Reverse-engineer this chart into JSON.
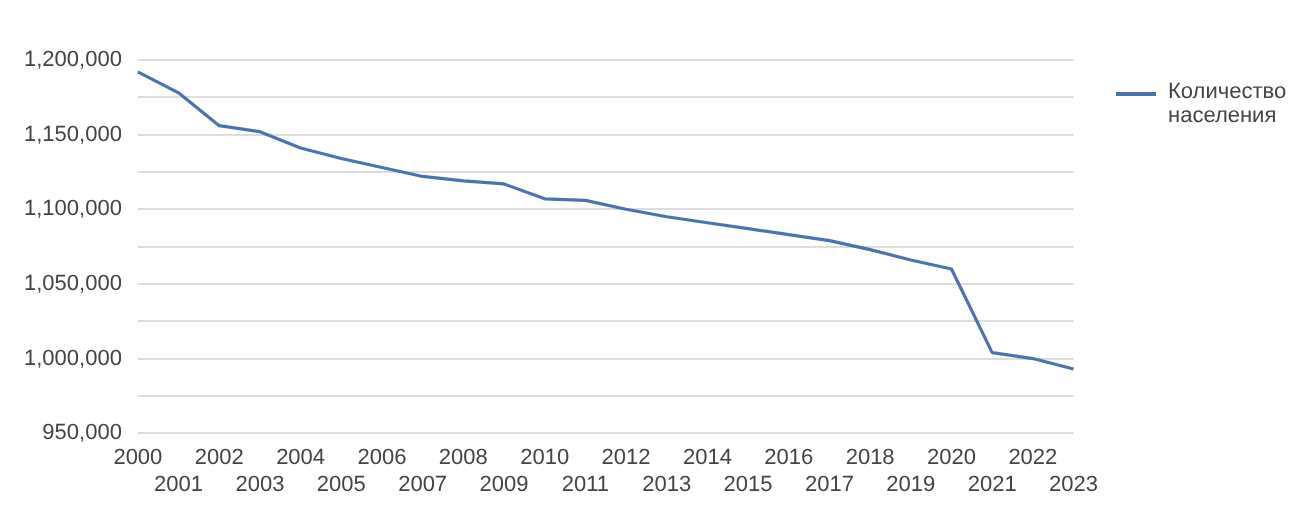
{
  "chart_data": {
    "type": "line",
    "categories": [
      "2000",
      "2001",
      "2002",
      "2003",
      "2004",
      "2005",
      "2006",
      "2007",
      "2008",
      "2009",
      "2010",
      "2011",
      "2012",
      "2013",
      "2014",
      "2015",
      "2016",
      "2017",
      "2018",
      "2019",
      "2020",
      "2021",
      "2022",
      "2023"
    ],
    "series": [
      {
        "name": "Количество населения",
        "color": "#4a74b0",
        "values": [
          1192000,
          1178000,
          1156000,
          1152000,
          1141000,
          1134000,
          1128000,
          1122000,
          1119000,
          1117000,
          1107000,
          1106000,
          1100000,
          1095000,
          1091000,
          1087000,
          1083000,
          1079000,
          1073000,
          1066000,
          1060000,
          1004000,
          1000000,
          993000
        ]
      }
    ],
    "ylim": [
      950000,
      1200000
    ],
    "yticks": [
      {
        "value": 950000,
        "label": "950,000"
      },
      {
        "value": 975000,
        "label": null
      },
      {
        "value": 1000000,
        "label": "1,000,000"
      },
      {
        "value": 1025000,
        "label": null
      },
      {
        "value": 1050000,
        "label": "1,050,000"
      },
      {
        "value": 1075000,
        "label": null
      },
      {
        "value": 1100000,
        "label": "1,100,000"
      },
      {
        "value": 1125000,
        "label": null
      },
      {
        "value": 1150000,
        "label": "1,150,000"
      },
      {
        "value": 1175000,
        "label": null
      },
      {
        "value": 1200000,
        "label": "1,200,000"
      }
    ],
    "grid": "y",
    "legend": "top right",
    "marker": "none",
    "line_style": "solid"
  }
}
